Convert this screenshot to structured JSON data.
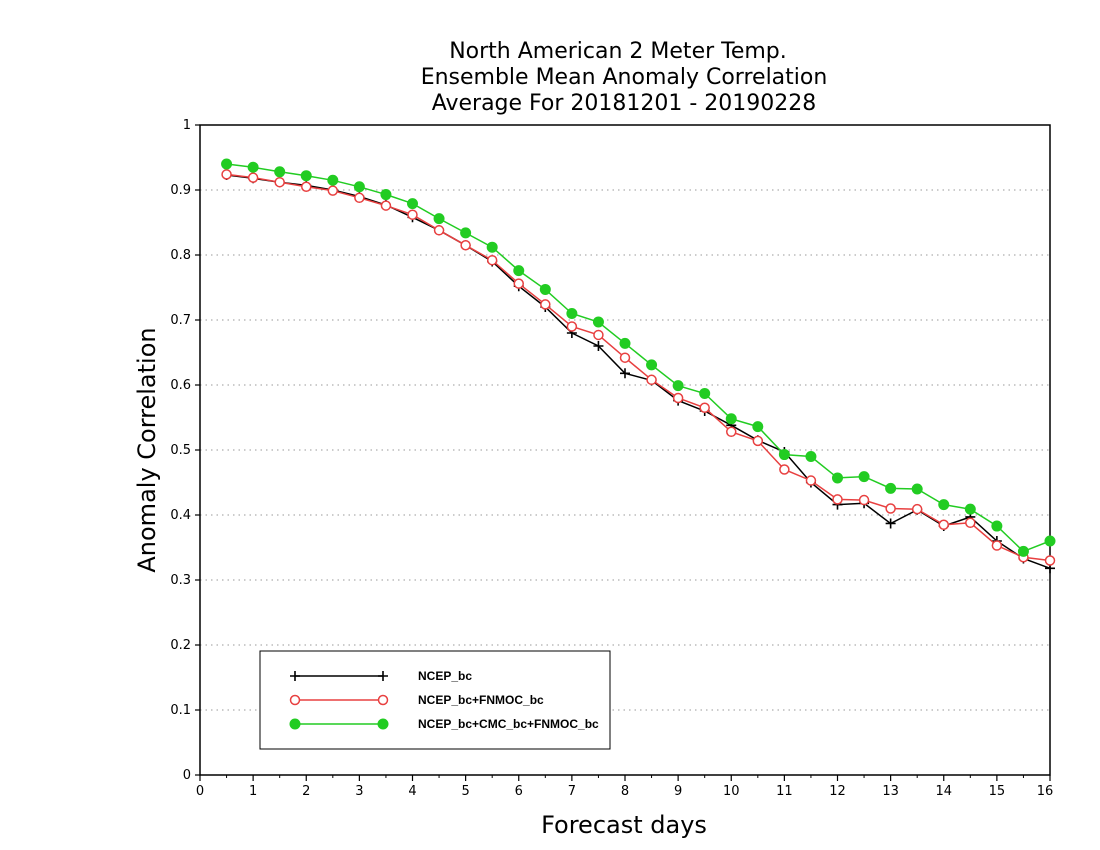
{
  "chart_data": {
    "type": "line",
    "title_lines": [
      "North American 2 Meter Temp.",
      "Ensemble Mean Anomaly Correlation",
      "Average For 20181201 - 20190228"
    ],
    "xlabel": "Forecast days",
    "ylabel": "Anomaly Correlation",
    "xlim": [
      0,
      16
    ],
    "ylim": [
      0,
      1
    ],
    "xticks": [
      "0",
      "1",
      "2",
      "3",
      "4",
      "5",
      "6",
      "7",
      "8",
      "9",
      "10",
      "11",
      "12",
      "13",
      "14",
      "15",
      "16"
    ],
    "yticks": [
      "0",
      "0.1",
      "0.2",
      "0.3",
      "0.4",
      "0.5",
      "0.6",
      "0.7",
      "0.8",
      "0.9",
      "1"
    ],
    "grid": "horizontal dotted",
    "legend_position": "bottom-left",
    "x": [
      0.5,
      1,
      1.5,
      2,
      2.5,
      3,
      3.5,
      4,
      4.5,
      5,
      5.5,
      6,
      6.5,
      7,
      7.5,
      8,
      8.5,
      9,
      9.5,
      10,
      10.5,
      11,
      11.5,
      12,
      12.5,
      13,
      13.5,
      14,
      14.5,
      15,
      15.5,
      16
    ],
    "series": [
      {
        "name": "NCEP_bc",
        "color": "#000000",
        "marker": "plus",
        "values": [
          0.923,
          0.918,
          0.912,
          0.907,
          0.9,
          0.89,
          0.877,
          0.858,
          0.838,
          0.815,
          0.79,
          0.752,
          0.72,
          0.68,
          0.66,
          0.618,
          0.607,
          0.576,
          0.56,
          0.538,
          0.515,
          0.497,
          0.45,
          0.416,
          0.418,
          0.387,
          0.408,
          0.383,
          0.397,
          0.36,
          0.333,
          0.318
        ]
      },
      {
        "name": "NCEP_bc+FNMOC_bc",
        "color": "#e84040",
        "marker": "open-circle",
        "values": [
          0.924,
          0.919,
          0.912,
          0.905,
          0.899,
          0.888,
          0.876,
          0.862,
          0.838,
          0.815,
          0.792,
          0.756,
          0.724,
          0.69,
          0.677,
          0.642,
          0.608,
          0.58,
          0.565,
          0.528,
          0.514,
          0.47,
          0.453,
          0.424,
          0.423,
          0.41,
          0.409,
          0.385,
          0.388,
          0.353,
          0.335,
          0.33
        ]
      },
      {
        "name": "NCEP_bc+CMC_bc+FNMOC_bc",
        "color": "#22cc22",
        "marker": "filled-circle",
        "values": [
          0.94,
          0.935,
          0.928,
          0.922,
          0.915,
          0.905,
          0.893,
          0.879,
          0.856,
          0.834,
          0.812,
          0.776,
          0.747,
          0.71,
          0.697,
          0.664,
          0.631,
          0.599,
          0.587,
          0.548,
          0.536,
          0.493,
          0.49,
          0.457,
          0.459,
          0.441,
          0.44,
          0.416,
          0.409,
          0.383,
          0.344,
          0.36
        ]
      }
    ]
  }
}
